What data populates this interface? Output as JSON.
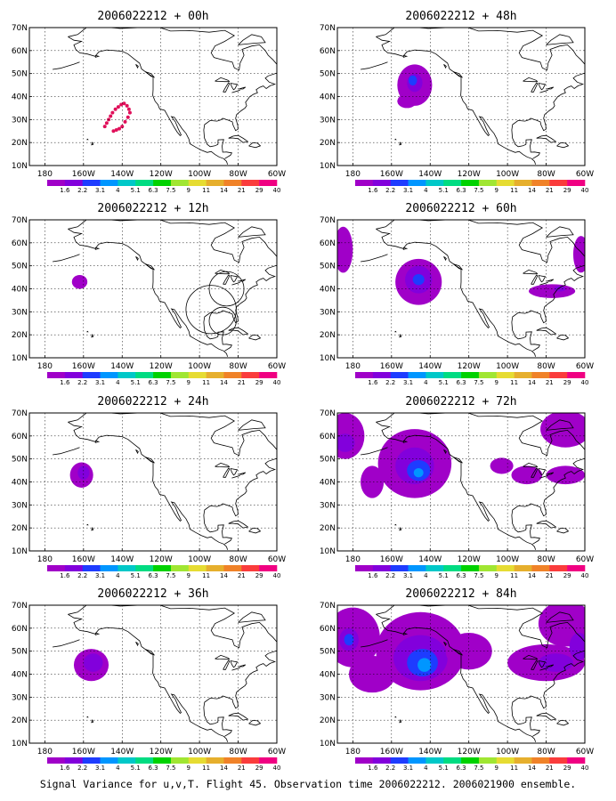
{
  "figure": {
    "caption": "Signal Variance for u,v,T. Flight 45. Observation time 2006022212. 2006021900 ensemble.",
    "lat_ticks": [
      "70N",
      "60N",
      "50N",
      "40N",
      "30N",
      "20N",
      "10N"
    ],
    "lon_ticks": [
      "180",
      "160W",
      "140W",
      "120W",
      "100W",
      "80W",
      "60W"
    ],
    "lat_range": [
      10,
      70
    ],
    "lon_range": [
      -188,
      -60
    ],
    "colorbar": {
      "labels": [
        "1.6",
        "2.2",
        "3.1",
        "4",
        "5.1",
        "6.3",
        "7.5",
        "9",
        "11",
        "14",
        "21",
        "29",
        "40"
      ],
      "colors": [
        "#a000c8",
        "#8200dc",
        "#1e3cff",
        "#0096ff",
        "#00c8c8",
        "#00dc82",
        "#00d200",
        "#a0e632",
        "#e6dc32",
        "#e6af2d",
        "#f08228",
        "#fa3c3c",
        "#f00082"
      ]
    },
    "panels": [
      {
        "title": "2006022212 + 00h",
        "column": "left",
        "row": 1
      },
      {
        "title": "2006022212 + 12h",
        "column": "left",
        "row": 2
      },
      {
        "title": "2006022212 + 24h",
        "column": "left",
        "row": 3
      },
      {
        "title": "2006022212 + 36h",
        "column": "left",
        "row": 4
      },
      {
        "title": "2006022212 + 48h",
        "column": "right",
        "row": 1
      },
      {
        "title": "2006022212 + 60h",
        "column": "right",
        "row": 2
      },
      {
        "title": "2006022212 + 72h",
        "column": "right",
        "row": 3
      },
      {
        "title": "2006022212 + 84h",
        "column": "right",
        "row": 4
      }
    ]
  }
}
